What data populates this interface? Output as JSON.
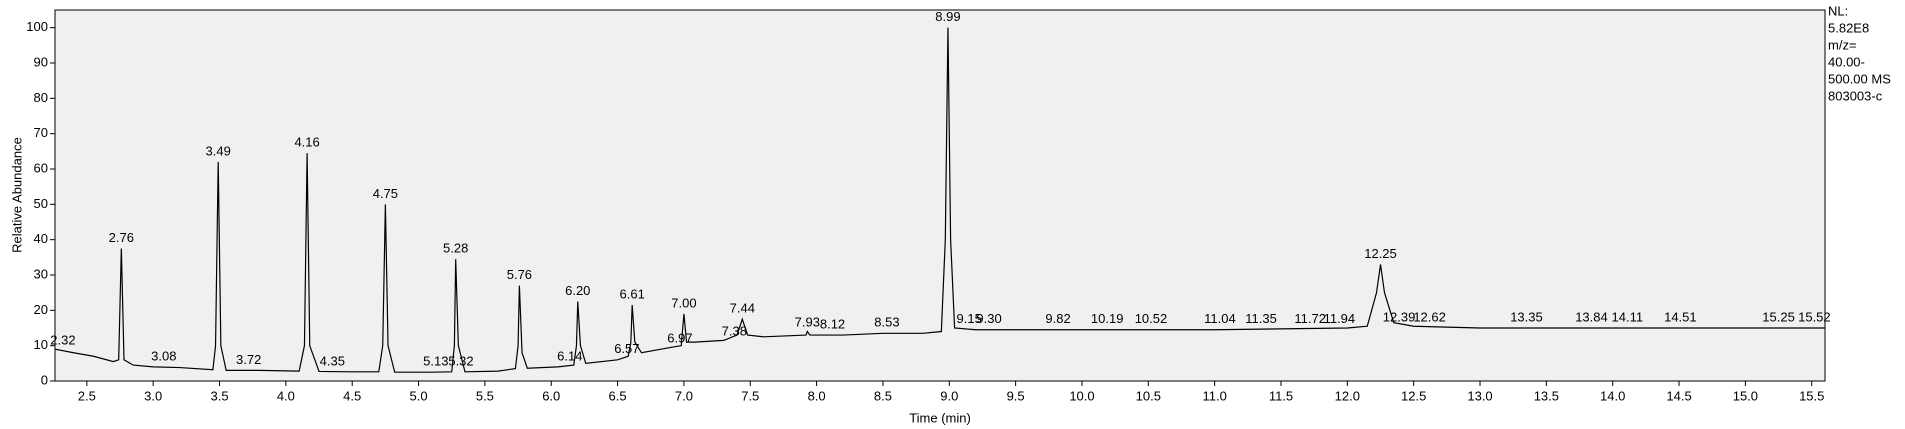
{
  "chart_data": {
    "type": "line",
    "x_label": "Time (min)",
    "y_label": "Relative Abundance",
    "side_text": [
      "NL:",
      "5.82E8",
      "m/z=",
      "40.00-",
      "500.00  MS",
      "803003-c"
    ],
    "xlim": [
      2.26,
      15.6
    ],
    "ylim": [
      0,
      105
    ],
    "xticks": [
      2.5,
      {
        "value": 3,
        "label": "3.0"
      },
      3.5,
      {
        "value": 4,
        "label": "4.0"
      },
      4.5,
      {
        "value": 5,
        "label": "5.0"
      },
      5.5,
      {
        "value": 6,
        "label": "6.0"
      },
      6.5,
      {
        "value": 7,
        "label": "7.0"
      },
      7.5,
      {
        "value": 8,
        "label": "8.0"
      },
      8.5,
      {
        "value": 9,
        "label": "9.0"
      },
      9.5,
      {
        "value": 10,
        "label": "10.0"
      },
      10.5,
      {
        "value": 11,
        "label": "11.0"
      },
      11.5,
      {
        "value": 12,
        "label": "12.0"
      },
      12.5,
      {
        "value": 13,
        "label": "13.0"
      },
      13.5,
      {
        "value": 14,
        "label": "14.0"
      },
      14.5,
      {
        "value": 15,
        "label": "15.0"
      },
      15.5
    ],
    "yticks": [
      0,
      10,
      20,
      30,
      40,
      50,
      60,
      70,
      80,
      90,
      100
    ],
    "series": [
      {
        "color": "#000000",
        "x": [
          2.26,
          2.4,
          2.55,
          2.7,
          2.74,
          2.76,
          2.78,
          2.85,
          3.0,
          3.2,
          3.45,
          3.47,
          3.49,
          3.51,
          3.55,
          3.8,
          4.1,
          4.14,
          4.16,
          4.18,
          4.25,
          4.5,
          4.7,
          4.73,
          4.75,
          4.77,
          4.82,
          5.1,
          5.25,
          5.27,
          5.28,
          5.3,
          5.35,
          5.6,
          5.73,
          5.75,
          5.76,
          5.78,
          5.82,
          6.05,
          6.17,
          6.19,
          6.2,
          6.22,
          6.26,
          6.5,
          6.58,
          6.6,
          6.61,
          6.63,
          6.68,
          6.9,
          6.98,
          7.0,
          7.02,
          7.08,
          7.3,
          7.4,
          7.44,
          7.48,
          7.6,
          7.92,
          7.93,
          7.95,
          8.2,
          8.5,
          8.8,
          8.94,
          8.97,
          8.99,
          9.01,
          9.04,
          9.2,
          10,
          11,
          12,
          12.15,
          12.22,
          12.25,
          12.28,
          12.35,
          12.5,
          13,
          14,
          15,
          15.6
        ],
        "values": [
          9,
          8,
          7,
          5.5,
          6,
          37.5,
          6,
          4.5,
          4,
          3.8,
          3.2,
          10,
          62,
          10,
          3,
          3,
          2.8,
          10,
          64.5,
          10,
          2.7,
          2.6,
          2.6,
          10,
          50,
          10,
          2.5,
          2.5,
          2.6,
          10,
          34.5,
          10,
          2.6,
          2.8,
          3.5,
          10,
          27,
          8,
          3.6,
          4,
          4.5,
          10,
          22.5,
          10,
          5,
          6,
          7,
          11,
          21.5,
          11,
          8,
          9.5,
          10,
          19,
          11,
          11,
          11.5,
          13,
          17.5,
          13,
          12.5,
          13,
          14,
          13,
          13,
          13.5,
          13.5,
          14,
          40,
          100,
          40,
          15,
          14.5,
          14.5,
          14.5,
          15,
          15.5,
          25,
          33,
          25,
          16.5,
          15.5,
          15,
          15,
          15,
          15
        ]
      }
    ],
    "peak_labels": [
      {
        "label": "2.32",
        "x": 2.32,
        "y": 8.5
      },
      {
        "label": "2.76",
        "x": 2.76,
        "y": 37.5
      },
      {
        "label": "3.08",
        "x": 3.08,
        "y": 4
      },
      {
        "label": "3.49",
        "x": 3.49,
        "y": 62
      },
      {
        "label": "3.72",
        "x": 3.72,
        "y": 3
      },
      {
        "label": "4.16",
        "x": 4.16,
        "y": 64.5
      },
      {
        "label": "4.35",
        "x": 4.35,
        "y": 2.5
      },
      {
        "label": "4.75",
        "x": 4.75,
        "y": 50
      },
      {
        "label": "5.13",
        "x": 5.13,
        "y": 2.5
      },
      {
        "label": "5.28",
        "x": 5.28,
        "y": 34.5
      },
      {
        "label": "5.32",
        "x": 5.32,
        "y": 2.5
      },
      {
        "label": "5.76",
        "x": 5.76,
        "y": 27
      },
      {
        "label": "6.14",
        "x": 6.14,
        "y": 4
      },
      {
        "label": "6.20",
        "x": 6.2,
        "y": 22.5
      },
      {
        "label": "6.57",
        "x": 6.57,
        "y": 6
      },
      {
        "label": "6.61",
        "x": 6.61,
        "y": 21.5
      },
      {
        "label": "6.97",
        "x": 6.97,
        "y": 9
      },
      {
        "label": "7.00",
        "x": 7.0,
        "y": 19
      },
      {
        "label": "7.38",
        "x": 7.38,
        "y": 11
      },
      {
        "label": "7.44",
        "x": 7.44,
        "y": 17.5
      },
      {
        "label": "7.93",
        "x": 7.93,
        "y": 13.5
      },
      {
        "label": "8.12",
        "x": 8.12,
        "y": 13
      },
      {
        "label": "8.53",
        "x": 8.53,
        "y": 13.5
      },
      {
        "label": "8.99",
        "x": 8.99,
        "y": 100
      },
      {
        "label": "9.15",
        "x": 9.15,
        "y": 14.5
      },
      {
        "label": "9.30",
        "x": 9.3,
        "y": 14.5
      },
      {
        "label": "9.82",
        "x": 9.82,
        "y": 14.5
      },
      {
        "label": "10.19",
        "x": 10.19,
        "y": 14.5
      },
      {
        "label": "10.52",
        "x": 10.52,
        "y": 14.5
      },
      {
        "label": "11.04",
        "x": 11.04,
        "y": 14.5
      },
      {
        "label": "11.35",
        "x": 11.35,
        "y": 14.5
      },
      {
        "label": "11.72",
        "x": 11.72,
        "y": 14.5
      },
      {
        "label": "11.94",
        "x": 11.94,
        "y": 14.5
      },
      {
        "label": "12.25",
        "x": 12.25,
        "y": 33
      },
      {
        "label": "12.39",
        "x": 12.39,
        "y": 15
      },
      {
        "label": "12.62",
        "x": 12.62,
        "y": 15
      },
      {
        "label": "13.35",
        "x": 13.35,
        "y": 15
      },
      {
        "label": "13.84",
        "x": 13.84,
        "y": 15
      },
      {
        "label": "14.11",
        "x": 14.11,
        "y": 15
      },
      {
        "label": "14.51",
        "x": 14.51,
        "y": 15
      },
      {
        "label": "15.25",
        "x": 15.25,
        "y": 15
      },
      {
        "label": "15.52",
        "x": 15.52,
        "y": 15
      }
    ]
  }
}
